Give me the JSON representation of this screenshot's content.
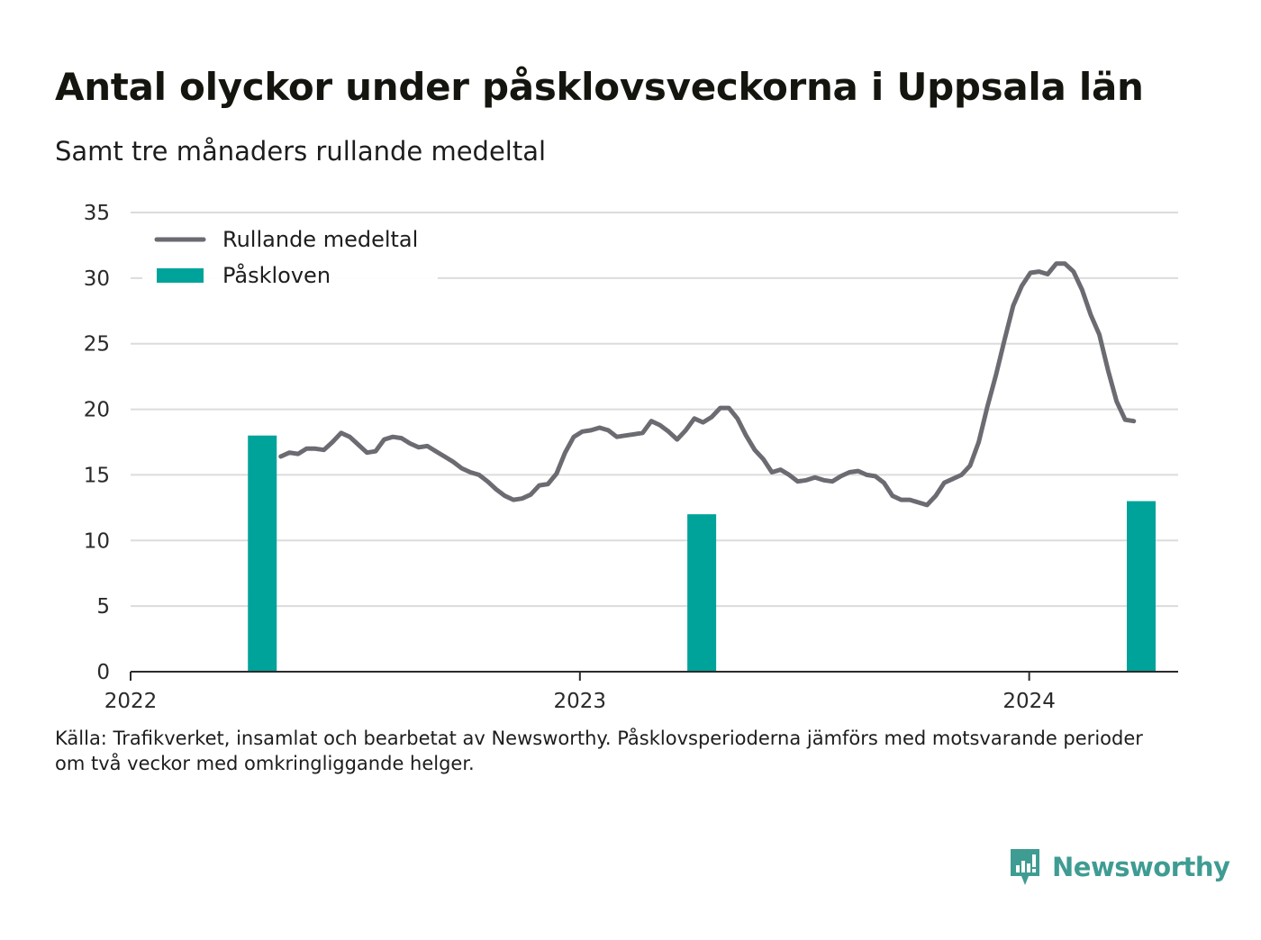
{
  "title": "Antal olyckor under påsklovsveckorna i Uppsala län",
  "subtitle": "Samt tre månaders rullande medeltal",
  "footnote": {
    "line1": "Källa: Trafikverket, insamlat och bearbetat av Newsworthy. Påsklovsperioderna jämförs med motsvarande perioder",
    "line2": "om två veckor med omkringliggande helger."
  },
  "brand": {
    "name": "Newsworthy",
    "logo_icon": "chart-bubble-icon",
    "color": "#3f9c92"
  },
  "chart_data": {
    "type": "bar+line",
    "ylim": [
      0,
      35
    ],
    "yticks": [
      0,
      5,
      10,
      15,
      20,
      25,
      30,
      35
    ],
    "xlim": [
      "2022-01-01",
      "2024-05-01"
    ],
    "xticks": [
      {
        "date": "2022-01-01",
        "label": "2022"
      },
      {
        "date": "2023-01-01",
        "label": "2023"
      },
      {
        "date": "2024-01-01",
        "label": "2024"
      }
    ],
    "grid": true,
    "legend_position": "top-left",
    "legend": [
      {
        "name": "Rullande medeltal",
        "kind": "line",
        "color": "#6b6b72"
      },
      {
        "name": "Påskloven",
        "kind": "bar",
        "color": "#00a39a"
      }
    ],
    "bars": {
      "name": "Påskloven",
      "color": "#00a39a",
      "points": [
        {
          "date": "2022-04-18",
          "value": 18
        },
        {
          "date": "2023-04-10",
          "value": 12
        },
        {
          "date": "2024-04-01",
          "value": 13
        }
      ]
    },
    "line": {
      "name": "Rullande medeltal",
      "color": "#6b6b72",
      "points": [
        [
          "2022-05-03",
          16.4
        ],
        [
          "2022-05-10",
          16.7
        ],
        [
          "2022-05-17",
          16.6
        ],
        [
          "2022-05-24",
          17.0
        ],
        [
          "2022-05-31",
          17.0
        ],
        [
          "2022-06-07",
          16.9
        ],
        [
          "2022-06-14",
          17.5
        ],
        [
          "2022-06-21",
          18.2
        ],
        [
          "2022-06-28",
          17.9
        ],
        [
          "2022-07-05",
          17.3
        ],
        [
          "2022-07-12",
          16.7
        ],
        [
          "2022-07-19",
          16.8
        ],
        [
          "2022-07-26",
          17.7
        ],
        [
          "2022-08-02",
          17.9
        ],
        [
          "2022-08-09",
          17.8
        ],
        [
          "2022-08-16",
          17.4
        ],
        [
          "2022-08-23",
          17.1
        ],
        [
          "2022-08-30",
          17.2
        ],
        [
          "2022-09-06",
          16.8
        ],
        [
          "2022-09-13",
          16.4
        ],
        [
          "2022-09-20",
          16.0
        ],
        [
          "2022-09-27",
          15.5
        ],
        [
          "2022-10-04",
          15.2
        ],
        [
          "2022-10-11",
          15.0
        ],
        [
          "2022-10-18",
          14.5
        ],
        [
          "2022-10-25",
          13.9
        ],
        [
          "2022-11-01",
          13.4
        ],
        [
          "2022-11-08",
          13.1
        ],
        [
          "2022-11-15",
          13.2
        ],
        [
          "2022-11-22",
          13.5
        ],
        [
          "2022-11-29",
          14.2
        ],
        [
          "2022-12-06",
          14.3
        ],
        [
          "2022-12-13",
          15.1
        ],
        [
          "2022-12-20",
          16.7
        ],
        [
          "2022-12-27",
          17.9
        ],
        [
          "2023-01-03",
          18.3
        ],
        [
          "2023-01-10",
          18.4
        ],
        [
          "2023-01-17",
          18.6
        ],
        [
          "2023-01-24",
          18.4
        ],
        [
          "2023-01-31",
          17.9
        ],
        [
          "2023-02-07",
          18.0
        ],
        [
          "2023-02-14",
          18.1
        ],
        [
          "2023-02-21",
          18.2
        ],
        [
          "2023-02-28",
          19.1
        ],
        [
          "2023-03-07",
          18.8
        ],
        [
          "2023-03-14",
          18.3
        ],
        [
          "2023-03-21",
          17.7
        ],
        [
          "2023-03-28",
          18.4
        ],
        [
          "2023-04-04",
          19.3
        ],
        [
          "2023-04-11",
          19.0
        ],
        [
          "2023-04-18",
          19.4
        ],
        [
          "2023-04-25",
          20.1
        ],
        [
          "2023-05-02",
          20.1
        ],
        [
          "2023-05-09",
          19.3
        ],
        [
          "2023-05-16",
          18.0
        ],
        [
          "2023-05-23",
          16.9
        ],
        [
          "2023-05-30",
          16.2
        ],
        [
          "2023-06-06",
          15.2
        ],
        [
          "2023-06-13",
          15.4
        ],
        [
          "2023-06-20",
          15.0
        ],
        [
          "2023-06-27",
          14.5
        ],
        [
          "2023-07-04",
          14.6
        ],
        [
          "2023-07-11",
          14.8
        ],
        [
          "2023-07-18",
          14.6
        ],
        [
          "2023-07-25",
          14.5
        ],
        [
          "2023-08-01",
          14.9
        ],
        [
          "2023-08-08",
          15.2
        ],
        [
          "2023-08-15",
          15.3
        ],
        [
          "2023-08-22",
          15.0
        ],
        [
          "2023-08-29",
          14.9
        ],
        [
          "2023-09-05",
          14.4
        ],
        [
          "2023-09-12",
          13.4
        ],
        [
          "2023-09-19",
          13.1
        ],
        [
          "2023-09-26",
          13.1
        ],
        [
          "2023-10-03",
          12.9
        ],
        [
          "2023-10-10",
          12.7
        ],
        [
          "2023-10-17",
          13.4
        ],
        [
          "2023-10-24",
          14.4
        ],
        [
          "2023-10-31",
          14.7
        ],
        [
          "2023-11-07",
          15.0
        ],
        [
          "2023-11-14",
          15.7
        ],
        [
          "2023-11-21",
          17.5
        ],
        [
          "2023-11-28",
          20.2
        ],
        [
          "2023-12-05",
          22.6
        ],
        [
          "2023-12-12",
          25.3
        ],
        [
          "2023-12-19",
          27.9
        ],
        [
          "2023-12-26",
          29.4
        ],
        [
          "2024-01-02",
          30.4
        ],
        [
          "2024-01-09",
          30.5
        ],
        [
          "2024-01-16",
          30.3
        ],
        [
          "2024-01-23",
          31.1
        ],
        [
          "2024-01-30",
          31.1
        ],
        [
          "2024-02-06",
          30.5
        ],
        [
          "2024-02-13",
          29.1
        ],
        [
          "2024-02-20",
          27.2
        ],
        [
          "2024-02-27",
          25.7
        ],
        [
          "2024-03-05",
          23.0
        ],
        [
          "2024-03-12",
          20.6
        ],
        [
          "2024-03-19",
          19.2
        ],
        [
          "2024-03-26",
          19.1
        ]
      ]
    }
  }
}
